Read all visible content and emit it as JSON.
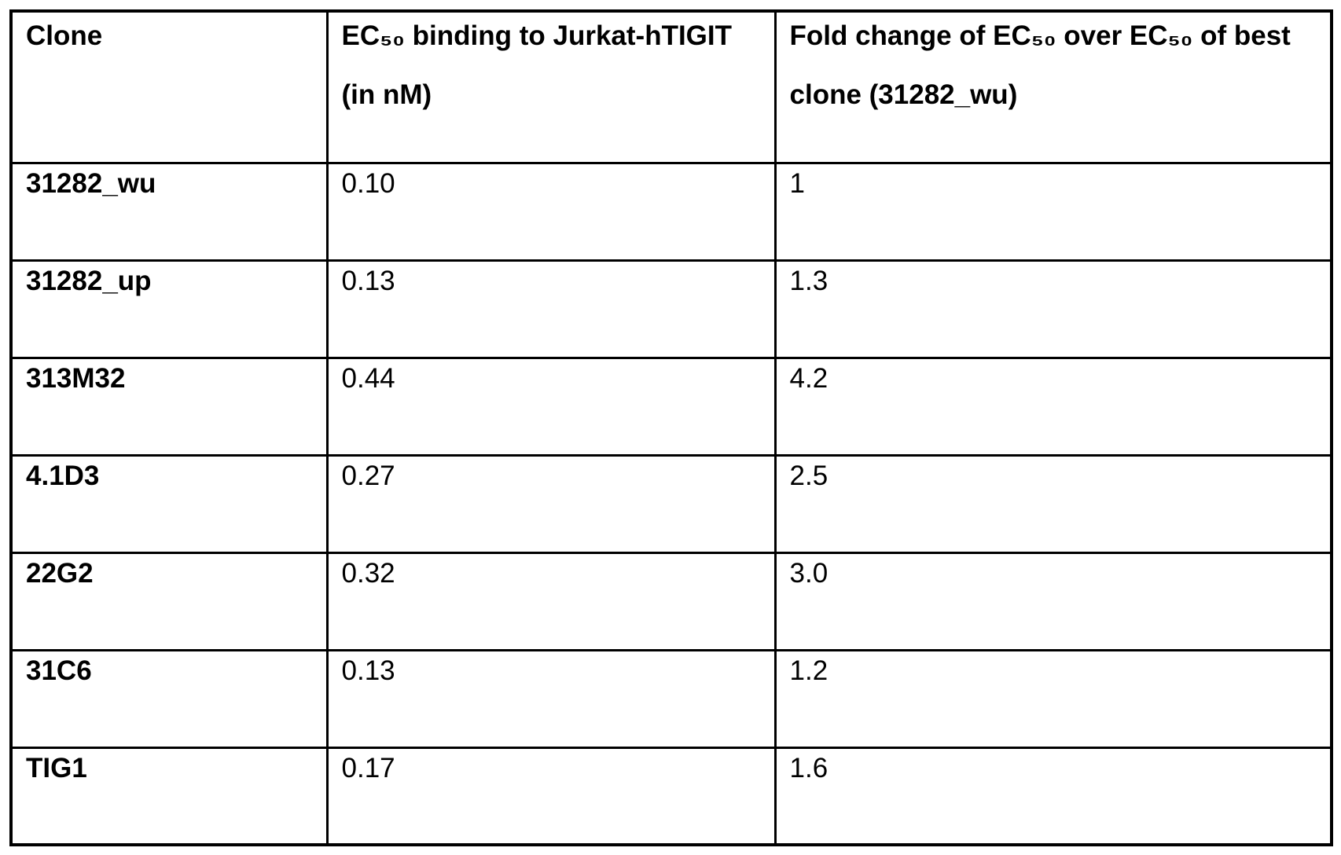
{
  "table": {
    "columns": [
      {
        "label": "Clone"
      },
      {
        "label": "EC₅₀ binding to Jurkat-hTIGIT (in nM)"
      },
      {
        "label": "Fold change of EC₅₀ over EC₅₀ of best clone (31282_wu)"
      }
    ],
    "rows": [
      {
        "clone": "31282_wu",
        "ec50": "0.10",
        "fold_change": "1"
      },
      {
        "clone": "31282_up",
        "ec50": "0.13",
        "fold_change": "1.3"
      },
      {
        "clone": "313M32",
        "ec50": "0.44",
        "fold_change": "4.2"
      },
      {
        "clone": "4.1D3",
        "ec50": "0.27",
        "fold_change": "2.5"
      },
      {
        "clone": "22G2",
        "ec50": "0.32",
        "fold_change": "3.0"
      },
      {
        "clone": "31C6",
        "ec50": "0.13",
        "fold_change": "1.2"
      },
      {
        "clone": "TIG1",
        "ec50": "0.17",
        "fold_change": "1.6"
      }
    ]
  },
  "colors": {
    "text": "#000000",
    "border": "#000000",
    "background": "#ffffff"
  }
}
